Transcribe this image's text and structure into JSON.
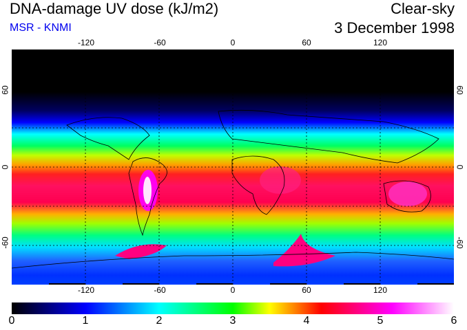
{
  "header": {
    "title": "DNA-damage UV dose (kJ/m2)",
    "source": "MSR - KNMI",
    "condition": "Clear-sky",
    "date": "3 December 1998"
  },
  "map": {
    "lon_ticks": [
      "-120",
      "-60",
      "0",
      "60",
      "120"
    ],
    "lat_ticks_left": [
      "60",
      "0",
      "-60"
    ],
    "lat_ticks_right": [
      "60",
      "0",
      "-60"
    ],
    "lon_values": [
      -120,
      -60,
      0,
      60,
      120
    ],
    "lat_values": [
      60,
      0,
      -60
    ],
    "lon_range": [
      -180,
      180
    ],
    "lat_range": [
      -90,
      90
    ]
  },
  "colorbar": {
    "ticks": [
      "0",
      "1",
      "2",
      "3",
      "4",
      "5",
      "6"
    ],
    "min": 0,
    "max": 6,
    "colors": [
      "#000000",
      "#0000ff",
      "#00ffff",
      "#00ff00",
      "#ffff00",
      "#ff0000",
      "#ff00ff",
      "#ffffff"
    ]
  }
}
